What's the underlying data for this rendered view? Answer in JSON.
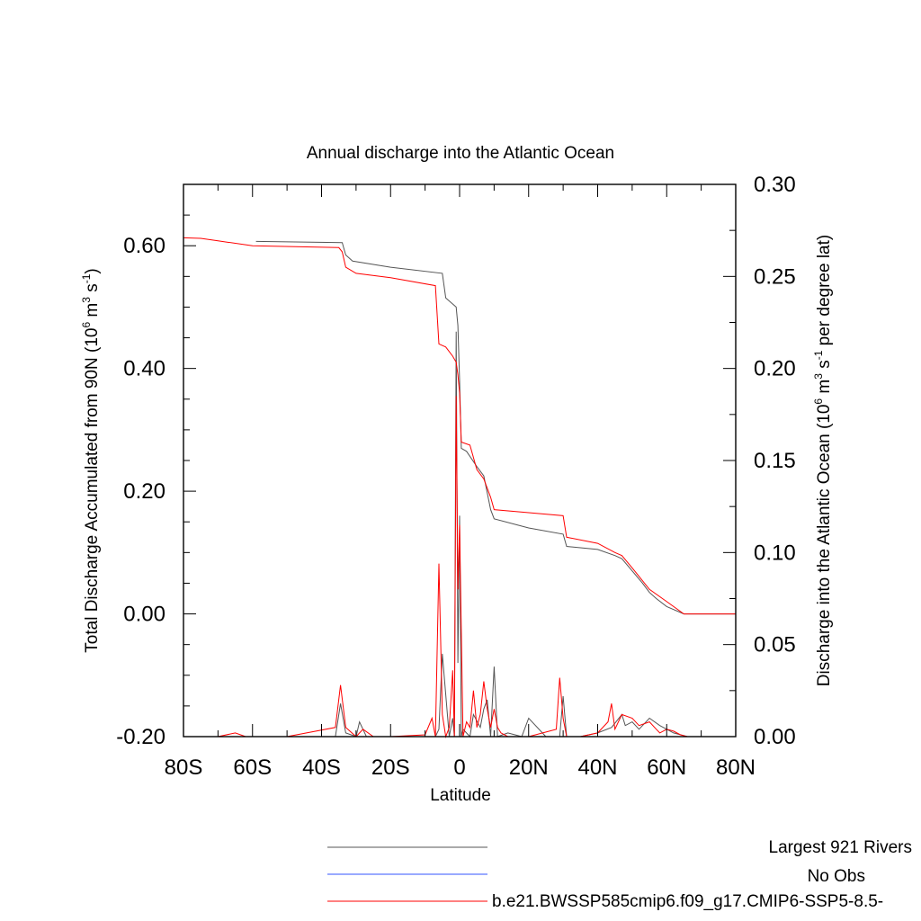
{
  "chart_data": {
    "type": "line",
    "title": "Annual discharge into the Atlantic Ocean",
    "xlabel": "Latitude",
    "ylabel_left": "Total Discharge Accumulated from 90N (10^6 m^3 s^-1)",
    "ylabel_left_parts": [
      "Total Discharge Accumulated from 90N (10",
      "6",
      " m",
      "3",
      " s",
      "-1",
      ")"
    ],
    "ylabel_right": "Discharge into the Atlantic Ocean (10^6 m^3 s^-1 per degree lat)",
    "ylabel_right_parts": [
      "Discharge into the Atlantic Ocean (10",
      "6",
      " m",
      "3",
      " s",
      "-1",
      " per degree lat)"
    ],
    "xlim": [
      -80,
      80
    ],
    "ylim_left": [
      -0.2,
      0.7
    ],
    "ylim_right": [
      0,
      0.3
    ],
    "x_ticks": [
      {
        "value": -80,
        "label": "80S"
      },
      {
        "value": -60,
        "label": "60S"
      },
      {
        "value": -40,
        "label": "40S"
      },
      {
        "value": -20,
        "label": "20S"
      },
      {
        "value": 0,
        "label": "0"
      },
      {
        "value": 20,
        "label": "20N"
      },
      {
        "value": 40,
        "label": "40N"
      },
      {
        "value": 60,
        "label": "60N"
      },
      {
        "value": 80,
        "label": "80N"
      }
    ],
    "y_left_ticks": [
      {
        "value": -0.2,
        "label": "-0.20"
      },
      {
        "value": 0.0,
        "label": "0.00"
      },
      {
        "value": 0.2,
        "label": "0.20"
      },
      {
        "value": 0.4,
        "label": "0.40"
      },
      {
        "value": 0.6,
        "label": "0.60"
      }
    ],
    "y_right_ticks": [
      {
        "value": 0.0,
        "label": "0.00"
      },
      {
        "value": 0.05,
        "label": "0.05"
      },
      {
        "value": 0.1,
        "label": "0.10"
      },
      {
        "value": 0.15,
        "label": "0.15"
      },
      {
        "value": 0.2,
        "label": "0.20"
      },
      {
        "value": 0.25,
        "label": "0.25"
      },
      {
        "value": 0.3,
        "label": "0.30"
      }
    ],
    "series": [
      {
        "name": "Largest 921 Rivers",
        "color": "#555555",
        "axis": "left",
        "x": [
          -59,
          -34,
          -33,
          -31,
          -20,
          -5,
          -4,
          -2,
          -1,
          -0.5,
          0,
          0.5,
          2,
          5,
          7,
          9,
          10,
          20,
          30,
          31,
          40,
          45,
          47,
          50,
          53,
          55,
          57,
          60,
          65,
          66,
          80
        ],
        "y": [
          0.607,
          0.605,
          0.585,
          0.575,
          0.565,
          0.555,
          0.515,
          0.505,
          0.5,
          0.47,
          0.38,
          0.27,
          0.265,
          0.24,
          0.225,
          0.17,
          0.155,
          0.14,
          0.13,
          0.11,
          0.105,
          0.095,
          0.09,
          0.07,
          0.05,
          0.035,
          0.025,
          0.012,
          0.0,
          0.0,
          0.0
        ]
      },
      {
        "name": "No Obs",
        "color": "#3355ff",
        "axis": "left",
        "x": [],
        "y": []
      },
      {
        "name": "b.e21.BWSSP585cmip6.f09_g17.CMIP6-SSP5-8.5-",
        "color": "#ff0000",
        "axis": "left",
        "x": [
          -80,
          -75,
          -70,
          -60,
          -35,
          -34,
          -33,
          -30,
          -20,
          -7,
          -6,
          -4,
          -2,
          -1,
          -0.5,
          0,
          0.5,
          3,
          5,
          7,
          9,
          10,
          20,
          30,
          31,
          40,
          45,
          47,
          50,
          55,
          60,
          65,
          66,
          80
        ],
        "y": [
          0.613,
          0.612,
          0.608,
          0.6,
          0.597,
          0.59,
          0.565,
          0.555,
          0.548,
          0.535,
          0.44,
          0.435,
          0.42,
          0.41,
          0.39,
          0.36,
          0.28,
          0.275,
          0.235,
          0.22,
          0.19,
          0.17,
          0.165,
          0.16,
          0.125,
          0.115,
          0.1,
          0.095,
          0.075,
          0.04,
          0.02,
          0.0,
          0.0,
          0.0
        ]
      }
    ],
    "spikes": [
      {
        "name": "Largest 921 Rivers",
        "color": "#555555",
        "axis": "right",
        "x": [
          -80,
          -36,
          -34.5,
          -33,
          -30,
          -29,
          -27,
          -20,
          -10,
          -7,
          -6,
          -5,
          -3,
          -2,
          -1.5,
          -1,
          -0.5,
          0,
          0.5,
          1,
          3,
          4,
          6,
          7,
          8,
          9,
          10,
          11,
          14,
          18,
          20,
          25,
          29,
          30,
          31,
          35,
          40,
          44,
          47,
          48,
          50,
          52,
          55,
          58,
          60,
          62,
          66,
          80
        ],
        "y": [
          0,
          0,
          0.018,
          0.002,
          0,
          0.008,
          0,
          0,
          0,
          0,
          0.004,
          0.045,
          0,
          0.01,
          0,
          0.22,
          0.04,
          0.12,
          0,
          0.004,
          0,
          0.012,
          0.005,
          0.015,
          0.02,
          0,
          0.038,
          0,
          0.002,
          0,
          0.01,
          0,
          0,
          0.022,
          0,
          0,
          0.002,
          0.005,
          0.012,
          0.006,
          0.008,
          0.004,
          0.01,
          0.006,
          0.004,
          0.002,
          0,
          0
        ]
      },
      {
        "name": "b.e21.BWSSP585cmip6.f09_g17.CMIP6-SSP5-8.5-",
        "color": "#ff0000",
        "axis": "right",
        "x": [
          -80,
          -70,
          -65,
          -62,
          -50,
          -36,
          -34.5,
          -33,
          -30,
          -28,
          -25,
          -20,
          -10,
          -8,
          -7,
          -6,
          -5,
          -4,
          -3,
          -2,
          -1.5,
          -1,
          -0.5,
          0,
          1,
          2,
          3,
          4,
          5,
          6,
          7,
          8,
          9,
          10,
          11,
          12,
          14,
          20,
          28,
          29,
          30,
          31,
          35,
          40,
          43,
          44,
          45,
          47,
          50,
          52,
          55,
          57,
          58,
          60,
          62,
          64,
          66,
          80
        ],
        "y": [
          0,
          0,
          0.002,
          0,
          0,
          0.005,
          0.028,
          0.005,
          0,
          0.004,
          0,
          0,
          0.001,
          0.01,
          0,
          0.094,
          0.012,
          0,
          0.005,
          0.036,
          0,
          0.185,
          0.08,
          0.115,
          0,
          0.008,
          0.005,
          0.025,
          0.005,
          0.012,
          0.03,
          0.015,
          0.005,
          0.015,
          0.005,
          0.002,
          0,
          0,
          0.004,
          0.032,
          0.01,
          0,
          0,
          0.002,
          0.008,
          0.018,
          0.004,
          0.012,
          0.01,
          0.006,
          0.008,
          0.004,
          0.002,
          0.004,
          0.003,
          0.001,
          0,
          0
        ]
      }
    ],
    "legend": [
      {
        "label": "Largest 921 Rivers",
        "color": "#555555"
      },
      {
        "label": "No Obs",
        "color": "#3355ff"
      },
      {
        "label": "b.e21.BWSSP585cmip6.f09_g17.CMIP6-SSP5-8.5-",
        "color": "#ff0000"
      }
    ],
    "legend_placement": "bottom",
    "grid": false
  }
}
